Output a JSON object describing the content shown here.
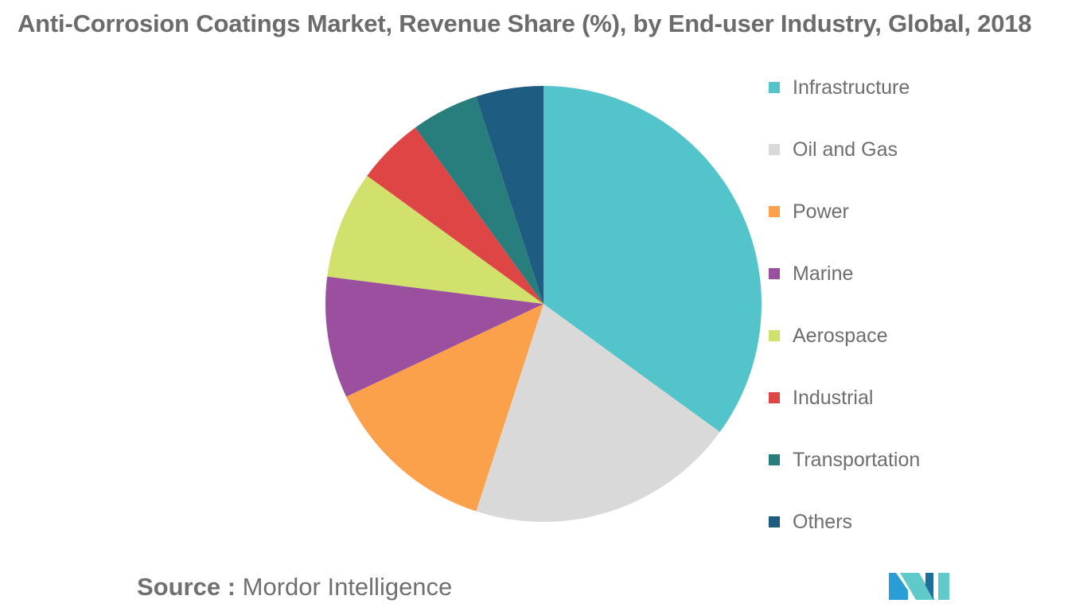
{
  "title": "Anti-Corrosion Coatings Market, Revenue Share (%), by End-user Industry, Global, 2018",
  "source": {
    "prefix": "Source :",
    "name": "Mordor Intelligence"
  },
  "logo": {
    "icon": "mordor-intelligence-logo-icon",
    "colors": [
      "#2a9cd6",
      "#5fcac9",
      "#1f6f9c"
    ]
  },
  "chart_data": {
    "type": "pie",
    "title": "Anti-Corrosion Coatings Market, Revenue Share (%), by End-user Industry, Global, 2018",
    "unit": "%",
    "start": "12 o'clock, clockwise",
    "legend_position": "right",
    "categories": [
      "Infrastructure",
      "Oil and Gas",
      "Power",
      "Marine",
      "Aerospace",
      "Industrial",
      "Transportation",
      "Others"
    ],
    "values": [
      35,
      20,
      13,
      9,
      8,
      5,
      5,
      5
    ],
    "colors": [
      "#52c4ca",
      "#d9d9d9",
      "#fba14b",
      "#9b4f9f",
      "#d1e16b",
      "#de4646",
      "#287d7d",
      "#1f5c81"
    ]
  }
}
